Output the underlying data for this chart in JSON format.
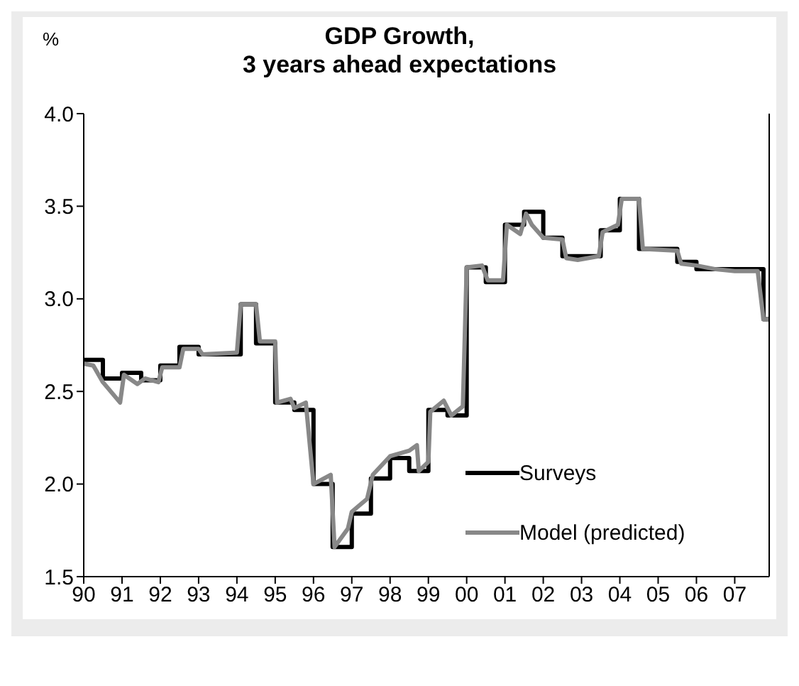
{
  "chart_data": {
    "type": "line",
    "title": "GDP Growth,\n3 years ahead expectations",
    "ylabel": "%",
    "xlim": [
      1990,
      2007.9
    ],
    "xticks": [
      {
        "value": 1990,
        "label": "90"
      },
      {
        "value": 1991,
        "label": "91"
      },
      {
        "value": 1992,
        "label": "92"
      },
      {
        "value": 1993,
        "label": "93"
      },
      {
        "value": 1994,
        "label": "94"
      },
      {
        "value": 1995,
        "label": "95"
      },
      {
        "value": 1996,
        "label": "96"
      },
      {
        "value": 1997,
        "label": "97"
      },
      {
        "value": 1998,
        "label": "98"
      },
      {
        "value": 1999,
        "label": "99"
      },
      {
        "value": 2000,
        "label": "00"
      },
      {
        "value": 2001,
        "label": "01"
      },
      {
        "value": 2002,
        "label": "02"
      },
      {
        "value": 2003,
        "label": "03"
      },
      {
        "value": 2004,
        "label": "04"
      },
      {
        "value": 2005,
        "label": "05"
      },
      {
        "value": 2006,
        "label": "06"
      },
      {
        "value": 2007,
        "label": "07"
      }
    ],
    "ylim": [
      1.5,
      4.0
    ],
    "yticks": [
      {
        "value": 1.5,
        "label": "1.5"
      },
      {
        "value": 2.0,
        "label": "2.0"
      },
      {
        "value": 2.5,
        "label": "2.5"
      },
      {
        "value": 3.0,
        "label": "3.0"
      },
      {
        "value": 3.5,
        "label": "3.5"
      },
      {
        "value": 4.0,
        "label": "4.0"
      }
    ],
    "grid": false,
    "legend": "bottom right",
    "marker": "none",
    "series": [
      {
        "name": "Surveys",
        "type": "step",
        "color": "#000000",
        "x": [
          1990,
          1990.5,
          1991,
          1991.5,
          1992,
          1992.5,
          1993,
          1994.1,
          1994.5,
          1995,
          1995.5,
          1996,
          1996.5,
          1997,
          1997.5,
          1998,
          1998.5,
          1999,
          1999.5,
          2000,
          2000.5,
          2001,
          2001.5,
          2002,
          2002.5,
          2003.5,
          2004,
          2004.5,
          2005.5,
          2006,
          2007.75,
          2007.9
        ],
        "values": [
          2.67,
          2.57,
          2.6,
          2.56,
          2.64,
          2.74,
          2.7,
          2.97,
          2.76,
          2.44,
          2.4,
          2.0,
          1.66,
          1.84,
          2.03,
          2.14,
          2.07,
          2.4,
          2.37,
          3.17,
          3.09,
          3.4,
          3.47,
          3.33,
          3.23,
          3.37,
          3.54,
          3.27,
          3.2,
          3.16,
          2.89,
          2.89
        ]
      },
      {
        "name": "Model (predicted)",
        "type": "line",
        "color": "#888888",
        "x": [
          1990,
          1990.25,
          1990.5,
          1990.95,
          1991.05,
          1991.4,
          1991.6,
          1991.95,
          1992.05,
          1992.5,
          1992.6,
          1993,
          1993.1,
          1994,
          1994.1,
          1994.5,
          1994.6,
          1995,
          1995.05,
          1995.4,
          1995.5,
          1995.8,
          1996,
          1996.45,
          1996.55,
          1996.9,
          1997,
          1997.4,
          1997.55,
          1998,
          1998.5,
          1998.7,
          1998.75,
          1999,
          1999.05,
          1999.4,
          1999.6,
          1999.9,
          2000,
          2000.4,
          2000.55,
          2000.95,
          2001.05,
          2001.4,
          2001.55,
          2001.7,
          2002,
          2002.5,
          2002.6,
          2002.9,
          2003.45,
          2003.55,
          2003.95,
          2004.05,
          2004.5,
          2004.6,
          2005.5,
          2005.6,
          2006,
          2006.5,
          2007,
          2007.6,
          2007.75,
          2007.9
        ],
        "values": [
          2.65,
          2.64,
          2.55,
          2.44,
          2.59,
          2.54,
          2.57,
          2.55,
          2.63,
          2.63,
          2.73,
          2.73,
          2.7,
          2.71,
          2.97,
          2.97,
          2.77,
          2.77,
          2.44,
          2.46,
          2.41,
          2.44,
          2.0,
          2.05,
          1.66,
          1.76,
          1.85,
          1.92,
          2.05,
          2.15,
          2.18,
          2.21,
          2.07,
          2.12,
          2.39,
          2.45,
          2.37,
          2.42,
          3.17,
          3.18,
          3.1,
          3.1,
          3.4,
          3.35,
          3.46,
          3.4,
          3.33,
          3.32,
          3.22,
          3.21,
          3.23,
          3.36,
          3.4,
          3.54,
          3.54,
          3.27,
          3.26,
          3.19,
          3.18,
          3.16,
          3.15,
          3.15,
          2.89,
          2.89
        ]
      }
    ]
  }
}
